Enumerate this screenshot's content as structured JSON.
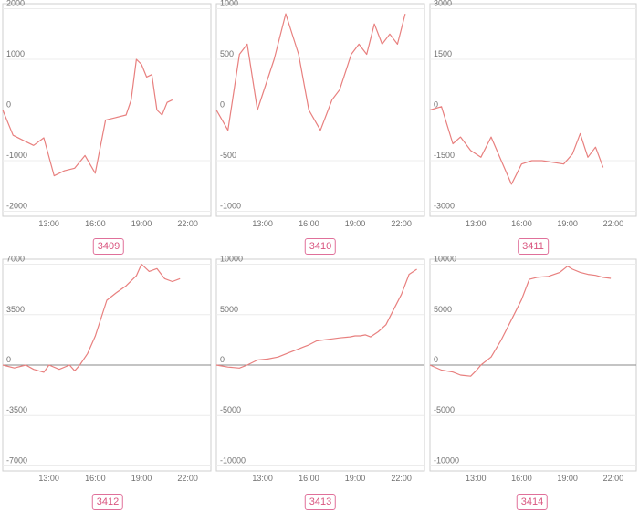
{
  "chart_data": [
    {
      "type": "line",
      "title": "3409",
      "x_ticks": [
        "13:00",
        "16:00",
        "19:00",
        "22:00"
      ],
      "y_ticks": [
        2000,
        1000,
        0,
        -1000,
        -2000
      ],
      "ylim": [
        -2100,
        2100
      ],
      "xlim": [
        "10:00",
        "23:30"
      ],
      "zero_line": true,
      "grid": true,
      "color": "#e8807f",
      "series": [
        {
          "x": [
            "10:00",
            "10:40",
            "11:20",
            "12:00",
            "12:40",
            "13:20",
            "14:00",
            "14:40",
            "15:20",
            "16:00",
            "16:40",
            "17:20",
            "18:00",
            "18:20",
            "18:40",
            "19:00",
            "19:20",
            "19:40",
            "20:00",
            "20:20",
            "20:40",
            "21:00"
          ],
          "values": [
            0,
            -500,
            -600,
            -700,
            -550,
            -1300,
            -1200,
            -1150,
            -900,
            -1250,
            -200,
            -150,
            -100,
            200,
            1000,
            900,
            650,
            700,
            0,
            -100,
            150,
            200
          ]
        }
      ]
    },
    {
      "type": "line",
      "title": "3410",
      "x_ticks": [
        "13:00",
        "16:00",
        "19:00",
        "22:00"
      ],
      "y_ticks": [
        1000,
        500,
        0,
        -500,
        -1000
      ],
      "ylim": [
        -1050,
        1050
      ],
      "xlim": [
        "10:00",
        "23:30"
      ],
      "zero_line": true,
      "grid": true,
      "color": "#e8807f",
      "series": [
        {
          "x": [
            "10:00",
            "10:45",
            "11:30",
            "12:00",
            "12:40",
            "13:45",
            "14:30",
            "15:20",
            "16:00",
            "16:45",
            "17:30",
            "18:00",
            "18:45",
            "19:15",
            "19:45",
            "20:15",
            "20:45",
            "21:15",
            "21:45",
            "22:15"
          ],
          "values": [
            0,
            -200,
            550,
            650,
            0,
            500,
            950,
            550,
            0,
            -200,
            100,
            200,
            550,
            650,
            550,
            850,
            650,
            750,
            650,
            950
          ]
        }
      ]
    },
    {
      "type": "line",
      "title": "3411",
      "x_ticks": [
        "13:00",
        "16:00",
        "19:00",
        "22:00"
      ],
      "y_ticks": [
        3000,
        1500,
        0,
        -1500,
        -3000
      ],
      "ylim": [
        -3150,
        3150
      ],
      "xlim": [
        "10:00",
        "23:30"
      ],
      "zero_line": true,
      "grid": true,
      "color": "#e8807f",
      "series": [
        {
          "x": [
            "10:00",
            "10:45",
            "11:30",
            "12:00",
            "12:40",
            "13:20",
            "14:00",
            "14:40",
            "15:20",
            "16:00",
            "16:40",
            "17:20",
            "18:45",
            "19:20",
            "19:50",
            "20:20",
            "20:50",
            "21:20"
          ],
          "values": [
            0,
            100,
            -1000,
            -800,
            -1200,
            -1400,
            -800,
            -1500,
            -2200,
            -1600,
            -1500,
            -1500,
            -1600,
            -1300,
            -700,
            -1400,
            -1100,
            -1700
          ]
        }
      ]
    },
    {
      "type": "line",
      "title": "3412",
      "x_ticks": [
        "13:00",
        "16:00",
        "19:00",
        "22:00"
      ],
      "y_ticks": [
        7000,
        3500,
        0,
        -3500,
        -7000
      ],
      "ylim": [
        -7350,
        7350
      ],
      "xlim": [
        "10:00",
        "23:30"
      ],
      "zero_line": true,
      "grid": true,
      "color": "#e8807f",
      "series": [
        {
          "x": [
            "10:00",
            "10:45",
            "11:30",
            "12:00",
            "12:40",
            "13:00",
            "13:40",
            "14:20",
            "14:40",
            "15:00",
            "15:30",
            "16:00",
            "16:45",
            "17:20",
            "18:00",
            "18:40",
            "19:00",
            "19:30",
            "20:00",
            "20:30",
            "21:00",
            "21:30"
          ],
          "values": [
            0,
            -200,
            0,
            -300,
            -500,
            0,
            -300,
            0,
            -400,
            0,
            800,
            2000,
            4500,
            5000,
            5500,
            6200,
            7000,
            6500,
            6700,
            6000,
            5800,
            6000
          ]
        }
      ]
    },
    {
      "type": "line",
      "title": "3413",
      "x_ticks": [
        "13:00",
        "16:00",
        "19:00",
        "22:00"
      ],
      "y_ticks": [
        10000,
        5000,
        0,
        -5000,
        -10000
      ],
      "ylim": [
        -10500,
        10500
      ],
      "xlim": [
        "10:00",
        "23:30"
      ],
      "zero_line": true,
      "grid": true,
      "color": "#e8807f",
      "series": [
        {
          "x": [
            "10:00",
            "10:45",
            "11:30",
            "12:00",
            "12:40",
            "13:20",
            "14:00",
            "14:40",
            "15:20",
            "15:40",
            "16:00",
            "16:30",
            "17:00",
            "17:30",
            "18:00",
            "18:40",
            "19:00",
            "19:20",
            "19:40",
            "20:00",
            "20:30",
            "21:00",
            "21:30",
            "22:00",
            "22:30",
            "23:00"
          ],
          "values": [
            0,
            -200,
            -300,
            0,
            500,
            600,
            800,
            1200,
            1600,
            1800,
            2000,
            2400,
            2500,
            2600,
            2700,
            2800,
            2900,
            2900,
            3000,
            2800,
            3300,
            4000,
            5500,
            7000,
            9000,
            9500
          ]
        }
      ]
    },
    {
      "type": "line",
      "title": "3414",
      "x_ticks": [
        "13:00",
        "16:00",
        "19:00",
        "22:00"
      ],
      "y_ticks": [
        10000,
        5000,
        0,
        -5000,
        -10000
      ],
      "ylim": [
        -10500,
        10500
      ],
      "xlim": [
        "10:00",
        "23:30"
      ],
      "zero_line": true,
      "grid": true,
      "color": "#e8807f",
      "series": [
        {
          "x": [
            "10:00",
            "10:45",
            "11:30",
            "12:00",
            "12:40",
            "13:00",
            "13:20",
            "14:00",
            "14:40",
            "15:20",
            "16:00",
            "16:30",
            "17:00",
            "17:45",
            "18:30",
            "19:00",
            "19:20",
            "19:50",
            "20:20",
            "20:50",
            "21:20",
            "21:50"
          ],
          "values": [
            0,
            -500,
            -700,
            -1000,
            -1100,
            -600,
            0,
            800,
            2500,
            4500,
            6500,
            8500,
            8700,
            8800,
            9200,
            9800,
            9500,
            9200,
            9000,
            8900,
            8700,
            8600
          ]
        }
      ]
    }
  ]
}
